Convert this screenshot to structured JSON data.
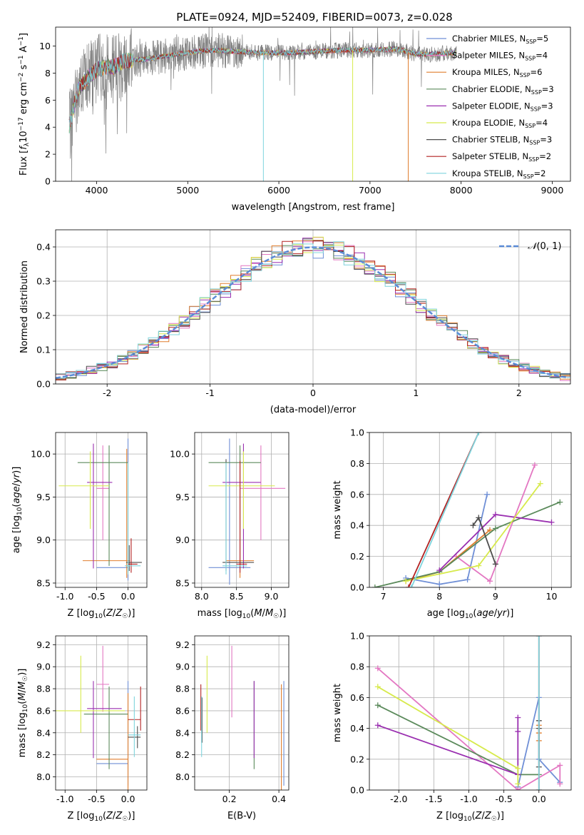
{
  "figure": {
    "title": "PLATE=0924, MJD=52409, FIBERID=0073, z=0.028"
  },
  "series_colors": [
    "#6f8fd6",
    "#e377c2",
    "#e07e2e",
    "#5b8a5b",
    "#9a2fb0",
    "#d7ea4c",
    "#4d4d4d",
    "#b22222",
    "#7fd4dd"
  ],
  "chart_data": [
    {
      "id": "spectrum",
      "type": "line",
      "title": "PLATE=0924, MJD=52409, FIBERID=0073, z=0.028",
      "xlabel": "wavelength [Angstrom, rest frame]",
      "ylabel": "Flux [f_λ10^-17 erg cm^-2 s^-1 A^-1]",
      "xlim": [
        3550,
        9200
      ],
      "ylim": [
        0,
        11.4
      ],
      "xticks": [
        4000,
        5000,
        6000,
        7000,
        8000,
        9000
      ],
      "yticks": [
        0,
        2,
        4,
        6,
        8,
        10
      ],
      "grid": false,
      "legend_position": "top-right",
      "data_range": [
        3700,
        7950
      ],
      "continuum": {
        "x": [
          3700,
          3750,
          3800,
          3900,
          4000,
          4100,
          4200,
          4300,
          4500,
          4700,
          4900,
          5100,
          5300,
          5500,
          5800,
          6100,
          6400,
          6700,
          7000,
          7300,
          7500,
          7700,
          7950
        ],
        "y": [
          4.0,
          5.5,
          6.8,
          7.6,
          8.3,
          8.4,
          8.5,
          8.9,
          9.0,
          9.2,
          9.4,
          9.6,
          9.7,
          9.6,
          9.5,
          9.5,
          9.6,
          9.7,
          9.7,
          9.8,
          9.4,
          9.4,
          9.5
        ]
      },
      "series": [
        {
          "name": "Chabrier MILES, N_SSP=5",
          "label": "Chabrier MILES, N",
          "sub": "SSP",
          "tail": "=5"
        },
        {
          "name": "Salpeter MILES, N_SSP=4",
          "label": "Salpeter MILES, N",
          "sub": "SSP",
          "tail": "=4"
        },
        {
          "name": "Kroupa MILES, N_SSP=6",
          "label": "Kroupa MILES, N",
          "sub": "SSP",
          "tail": "=6"
        },
        {
          "name": "Chabrier ELODIE, N_SSP=3",
          "label": "Chabrier ELODIE, N",
          "sub": "SSP",
          "tail": "=3"
        },
        {
          "name": "Salpeter ELODIE, N_SSP=3",
          "label": "Salpeter ELODIE, N",
          "sub": "SSP",
          "tail": "=3"
        },
        {
          "name": "Kroupa ELODIE, N_SSP=4",
          "label": "Kroupa ELODIE, N",
          "sub": "SSP",
          "tail": "=4"
        },
        {
          "name": "Chabrier STELIB, N_SSP=3",
          "label": "Chabrier STELIB, N",
          "sub": "SSP",
          "tail": "=3"
        },
        {
          "name": "Salpeter STELIB, N_SSP=2",
          "label": "Salpeter STELIB, N",
          "sub": "SSP",
          "tail": "=2"
        },
        {
          "name": "Kroupa STELIB, N_SSP=2",
          "label": "Kroupa STELIB, N",
          "sub": "SSP",
          "tail": "=2"
        }
      ],
      "model_drops": [
        {
          "x": 5830,
          "series": 8
        },
        {
          "x": 6810,
          "series": 5
        },
        {
          "x": 7420,
          "series": 2
        }
      ]
    },
    {
      "id": "residuals",
      "type": "histogram",
      "xlabel": "(data-model)/error",
      "ylabel": "Normed distribution",
      "xlim": [
        -2.5,
        2.5
      ],
      "ylim": [
        0,
        0.45
      ],
      "xticks": [
        -2,
        -1,
        0,
        1,
        2
      ],
      "yticks": [
        0.0,
        0.1,
        0.2,
        0.3,
        0.4
      ],
      "grid": true,
      "bin_width": 0.1,
      "legend_position": "top-right",
      "reference": {
        "name": "N(0,1)",
        "label_main": "𝒩",
        "label_args": "(0, 1)",
        "color": "#5b8bd6",
        "mean": 0,
        "sigma": 1
      }
    },
    {
      "id": "age-vs-Z",
      "type": "errorbar",
      "xlabel": "Z [log10(Z/Z☉)]",
      "ylabel": "age [log10(age/yr)]",
      "xlim": [
        -1.15,
        0.3
      ],
      "ylim": [
        8.45,
        10.25
      ],
      "xticks": [
        -1.0,
        -0.5,
        0.0
      ],
      "yticks": [
        8.5,
        9.0,
        9.5,
        10.0
      ],
      "grid": true,
      "points": [
        {
          "series": 0,
          "x": 0.0,
          "xerr": [
            0.5,
            0.0
          ],
          "y": 8.68,
          "yerr": [
            0.15,
            1.5
          ]
        },
        {
          "series": 1,
          "x": -0.4,
          "xerr": [
            0.1,
            0.1
          ],
          "y": 9.6,
          "yerr": [
            0.6,
            0.5
          ]
        },
        {
          "series": 2,
          "x": -0.02,
          "xerr": [
            0.7,
            0.05
          ],
          "y": 8.76,
          "yerr": [
            0.2,
            1.3
          ]
        },
        {
          "series": 3,
          "x": -0.3,
          "xerr": [
            0.5,
            0.3
          ],
          "y": 9.9,
          "yerr": [
            1.2,
            0.2
          ]
        },
        {
          "series": 4,
          "x": -0.55,
          "xerr": [
            0.1,
            0.3
          ],
          "y": 9.67,
          "yerr": [
            1.0,
            0.45
          ]
        },
        {
          "series": 5,
          "x": -0.6,
          "xerr": [
            0.5,
            0.3
          ],
          "y": 9.63,
          "yerr": [
            0.5,
            0.4
          ]
        },
        {
          "series": 6,
          "x": 0.02,
          "xerr": [
            0.05,
            0.2
          ],
          "y": 8.74,
          "yerr": [
            0.1,
            0.2
          ]
        },
        {
          "series": 7,
          "x": 0.05,
          "xerr": [
            0.05,
            0.1
          ],
          "y": 8.72,
          "yerr": [
            0.1,
            0.3
          ]
        },
        {
          "series": 8,
          "x": 0.0,
          "xerr": [
            0.05,
            0.2
          ],
          "y": 8.7,
          "yerr": [
            0.1,
            1.2
          ]
        }
      ]
    },
    {
      "id": "age-vs-mass",
      "type": "errorbar",
      "xlabel": "mass [log10(M/M☉)]",
      "ylabel": "",
      "xlim": [
        7.9,
        9.25
      ],
      "ylim": [
        8.45,
        10.25
      ],
      "xticks": [
        8.0,
        8.5,
        9.0
      ],
      "yticks": [
        8.5,
        9.0,
        9.5,
        10.0
      ],
      "grid": true,
      "points": [
        {
          "series": 0,
          "x": 8.4,
          "xerr": [
            0.3,
            0.3
          ],
          "y": 8.68,
          "yerr": [
            0.2,
            1.5
          ]
        },
        {
          "series": 1,
          "x": 8.85,
          "xerr": [
            0.3,
            0.35
          ],
          "y": 9.6,
          "yerr": [
            0.6,
            0.5
          ]
        },
        {
          "series": 2,
          "x": 8.55,
          "xerr": [
            0.2,
            0.2
          ],
          "y": 8.76,
          "yerr": [
            0.2,
            1.3
          ]
        },
        {
          "series": 3,
          "x": 8.55,
          "xerr": [
            0.45,
            0.3
          ],
          "y": 9.9,
          "yerr": [
            1.2,
            0.2
          ]
        },
        {
          "series": 4,
          "x": 8.6,
          "xerr": [
            0.3,
            0.25
          ],
          "y": 9.67,
          "yerr": [
            1.0,
            0.45
          ]
        },
        {
          "series": 5,
          "x": 8.6,
          "xerr": [
            0.5,
            0.45
          ],
          "y": 9.63,
          "yerr": [
            0.5,
            0.4
          ]
        },
        {
          "series": 6,
          "x": 8.35,
          "xerr": [
            0.05,
            0.4
          ],
          "y": 8.74,
          "yerr": [
            0.1,
            1.2
          ]
        },
        {
          "series": 7,
          "x": 8.55,
          "xerr": [
            0.05,
            0.1
          ],
          "y": 8.72,
          "yerr": [
            0.1,
            1.2
          ]
        },
        {
          "series": 8,
          "x": 8.35,
          "xerr": [
            0.05,
            0.3
          ],
          "y": 8.7,
          "yerr": [
            0.1,
            1.2
          ]
        }
      ]
    },
    {
      "id": "mass-weight-vs-age",
      "type": "line",
      "xlabel": "age [log10(age/yr)]",
      "ylabel": "mass weight",
      "xlim": [
        6.75,
        10.35
      ],
      "ylim": [
        0,
        1.0
      ],
      "xticks": [
        7,
        8,
        9,
        10
      ],
      "yticks": [
        0.0,
        0.2,
        0.4,
        0.6,
        0.8,
        1.0
      ],
      "grid": true,
      "series": [
        {
          "series": 0,
          "x": [
            7.4,
            8.0,
            8.5,
            8.85
          ],
          "y": [
            0.06,
            0.02,
            0.05,
            0.6
          ]
        },
        {
          "series": 1,
          "x": [
            8.3,
            8.9,
            9.7
          ],
          "y": [
            0.2,
            0.04,
            0.79
          ]
        },
        {
          "series": 2,
          "x": [
            7.4,
            8.0,
            8.9
          ],
          "y": [
            0.04,
            0.1,
            0.37
          ]
        },
        {
          "series": 3,
          "x": [
            6.85,
            8.0,
            9.0,
            10.15
          ],
          "y": [
            0.0,
            0.1,
            0.38,
            0.55
          ]
        },
        {
          "series": 4,
          "x": [
            8.0,
            9.0,
            10.0
          ],
          "y": [
            0.11,
            0.47,
            0.42
          ]
        },
        {
          "series": 5,
          "x": [
            7.4,
            8.7,
            9.8
          ],
          "y": [
            0.04,
            0.14,
            0.67
          ]
        },
        {
          "series": 6,
          "x": [
            8.6,
            8.7,
            9.0
          ],
          "y": [
            0.4,
            0.45,
            0.15
          ]
        },
        {
          "series": 7,
          "x": [
            7.45,
            8.7
          ],
          "y": [
            0.0,
            1.0
          ]
        },
        {
          "series": 8,
          "x": [
            7.5,
            8.7
          ],
          "y": [
            0.0,
            1.0
          ]
        }
      ]
    },
    {
      "id": "mass-vs-Z",
      "type": "errorbar",
      "xlabel": "Z [log10(Z/Z☉)]",
      "ylabel": "mass [log10(M/M☉)]",
      "xlim": [
        -1.15,
        0.3
      ],
      "ylim": [
        7.88,
        9.28
      ],
      "xticks": [
        -1.0,
        -0.5,
        0.0
      ],
      "yticks": [
        8.0,
        8.2,
        8.4,
        8.6,
        8.8,
        9.0,
        9.2
      ],
      "grid": true,
      "points": [
        {
          "series": 0,
          "x": 0.0,
          "xerr": [
            0.5,
            0.0
          ],
          "y": 8.12,
          "yerr": [
            0.2,
            0.75
          ]
        },
        {
          "series": 1,
          "x": -0.4,
          "xerr": [
            0.1,
            0.1
          ],
          "y": 8.84,
          "yerr": [
            0.25,
            0.35
          ]
        },
        {
          "series": 2,
          "x": 0.0,
          "xerr": [
            0.5,
            0.0
          ],
          "y": 8.16,
          "yerr": [
            0.3,
            0.6
          ]
        },
        {
          "series": 3,
          "x": -0.3,
          "xerr": [
            0.4,
            0.3
          ],
          "y": 8.57,
          "yerr": [
            0.5,
            0.25
          ]
        },
        {
          "series": 4,
          "x": -0.55,
          "xerr": [
            0.1,
            0.45
          ],
          "y": 8.62,
          "yerr": [
            0.45,
            0.25
          ]
        },
        {
          "series": 5,
          "x": -0.75,
          "xerr": [
            0.4,
            0.7
          ],
          "y": 8.6,
          "yerr": [
            0.2,
            0.5
          ]
        },
        {
          "series": 6,
          "x": 0.15,
          "xerr": [
            0.15,
            0.05
          ],
          "y": 8.36,
          "yerr": [
            0.1,
            0.1
          ]
        },
        {
          "series": 7,
          "x": 0.2,
          "xerr": [
            0.2,
            0.0
          ],
          "y": 8.52,
          "yerr": [
            0.1,
            0.3
          ]
        },
        {
          "series": 8,
          "x": 0.1,
          "xerr": [
            0.1,
            0.1
          ],
          "y": 8.38,
          "yerr": [
            0.2,
            0.35
          ]
        }
      ]
    },
    {
      "id": "mass-vs-EBV",
      "type": "errorbar",
      "xlabel": "E(B-V)",
      "ylabel": "",
      "xlim": [
        0.06,
        0.44
      ],
      "ylim": [
        7.88,
        9.28
      ],
      "xticks": [
        0.2,
        0.4
      ],
      "yticks": [
        8.0,
        8.2,
        8.4,
        8.6,
        8.8,
        9.0,
        9.2
      ],
      "grid": true,
      "points": [
        {
          "series": 0,
          "x": 0.42,
          "xerr": [
            0,
            0
          ],
          "y": 8.12,
          "yerr": [
            0.2,
            0.75
          ]
        },
        {
          "series": 1,
          "x": 0.21,
          "xerr": [
            0,
            0
          ],
          "y": 8.84,
          "yerr": [
            0.3,
            0.35
          ]
        },
        {
          "series": 2,
          "x": 0.41,
          "xerr": [
            0,
            0
          ],
          "y": 8.16,
          "yerr": [
            0.3,
            0.68
          ]
        },
        {
          "series": 3,
          "x": 0.3,
          "xerr": [
            0,
            0
          ],
          "y": 8.57,
          "yerr": [
            0.5,
            0.3
          ]
        },
        {
          "series": 4,
          "x": 0.3,
          "xerr": [
            0,
            0
          ],
          "y": 8.62,
          "yerr": [
            0.45,
            0.25
          ]
        },
        {
          "series": 5,
          "x": 0.11,
          "xerr": [
            0,
            0
          ],
          "y": 8.6,
          "yerr": [
            0.2,
            0.5
          ]
        },
        {
          "series": 6,
          "x": 0.09,
          "xerr": [
            0,
            0
          ],
          "y": 8.36,
          "yerr": [
            0.05,
            0.36
          ]
        },
        {
          "series": 7,
          "x": 0.085,
          "xerr": [
            0,
            0
          ],
          "y": 8.52,
          "yerr": [
            0.1,
            0.32
          ]
        },
        {
          "series": 8,
          "x": 0.088,
          "xerr": [
            0,
            0
          ],
          "y": 8.38,
          "yerr": [
            0.2,
            0.35
          ]
        }
      ]
    },
    {
      "id": "mass-weight-vs-Z",
      "type": "line",
      "xlabel": "Z [log10(Z/Z☉)]",
      "ylabel": "mass weight",
      "xlim": [
        -2.42,
        0.46
      ],
      "ylim": [
        0,
        1.0
      ],
      "xticks": [
        -2.0,
        -1.5,
        -1.0,
        -0.5,
        0.0
      ],
      "yticks": [
        0.0,
        0.2,
        0.4,
        0.6,
        0.8,
        1.0
      ],
      "grid": true,
      "series": [
        {
          "series": 0,
          "x": [
            -0.3,
            0.0,
            0.0,
            0.3
          ],
          "y": [
            0.02,
            0.6,
            0.2,
            0.05
          ]
        },
        {
          "series": 1,
          "x": [
            -2.3,
            -0.3,
            0.3,
            0.3
          ],
          "y": [
            0.79,
            0.0,
            0.16,
            0.04
          ]
        },
        {
          "series": 2,
          "x": [
            0.0,
            0.0,
            0.0
          ],
          "y": [
            0.32,
            0.37,
            0.42
          ]
        },
        {
          "series": 3,
          "x": [
            -2.3,
            -0.3,
            0.0
          ],
          "y": [
            0.55,
            0.1,
            0.1
          ]
        },
        {
          "series": 4,
          "x": [
            -2.3,
            -0.3,
            -0.3,
            -0.3
          ],
          "y": [
            0.42,
            0.1,
            0.47,
            0.38
          ]
        },
        {
          "series": 5,
          "x": [
            -2.3,
            -0.3,
            -0.3
          ],
          "y": [
            0.67,
            0.14,
            0.04
          ]
        },
        {
          "series": 6,
          "x": [
            0.0,
            0.0,
            0.0
          ],
          "y": [
            0.15,
            0.4,
            0.45
          ]
        },
        {
          "series": 7,
          "x": [
            0.0,
            0.0
          ],
          "y": [
            0.0,
            1.0
          ]
        },
        {
          "series": 8,
          "x": [
            0.0,
            0.0
          ],
          "y": [
            0.0,
            1.0
          ]
        }
      ]
    }
  ]
}
